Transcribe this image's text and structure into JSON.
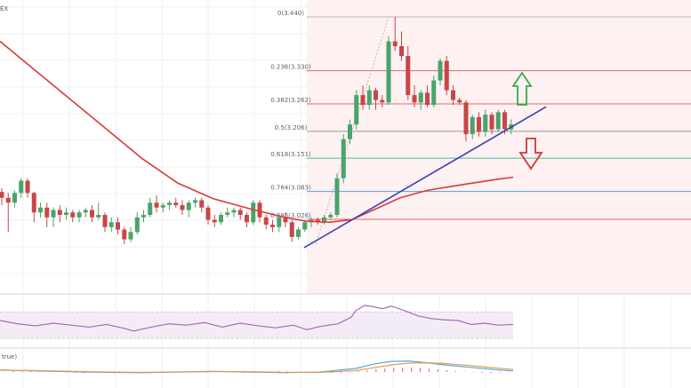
{
  "header": {
    "symbol_fragment": "EX"
  },
  "indicator_label": "true)",
  "colors": {
    "bull": "#4aa36b",
    "bear": "#c94646",
    "ma": "#d93b3b",
    "trendline": "#3a3fb8",
    "rsi": "#a66ab6",
    "fib_shade": "#fdf1f1",
    "arrow_up": "#3aa84a",
    "arrow_down": "#d63333"
  },
  "chart_data": {
    "type": "candlestick",
    "title": "",
    "ylim": [
      2.95,
      3.47
    ],
    "fib_levels": [
      {
        "ratio": "0",
        "price": 3.44,
        "label": "0(3.440)",
        "color": "#b9b9b9"
      },
      {
        "ratio": "0.236",
        "price": 3.33,
        "label": "0.236(3.330)",
        "color": "#e06a6a"
      },
      {
        "ratio": "0.382",
        "price": 3.262,
        "label": "0.382(3.262)",
        "color": "#e06a6a"
      },
      {
        "ratio": "0.5",
        "price": 3.206,
        "label": "0.5(3.206)",
        "color": "#9a9a9a"
      },
      {
        "ratio": "0.618",
        "price": 3.151,
        "label": "0.618(3.151)",
        "color": "#4cc09a"
      },
      {
        "ratio": "0.764",
        "price": 3.083,
        "label": "0.764(3.083)",
        "color": "#5aa0c8"
      },
      {
        "ratio": "0.886",
        "price": 3.026,
        "label": "0.886(3.026)",
        "color": "#e06a6a"
      }
    ],
    "candles": [
      [
        3.082,
        3.09,
        3.055,
        3.07
      ],
      [
        3.07,
        3.08,
        3.0,
        3.06
      ],
      [
        3.06,
        3.085,
        3.05,
        3.08
      ],
      [
        3.08,
        3.11,
        3.07,
        3.105
      ],
      [
        3.105,
        3.11,
        3.07,
        3.08
      ],
      [
        3.08,
        3.082,
        3.02,
        3.04
      ],
      [
        3.04,
        3.06,
        3.03,
        3.05
      ],
      [
        3.05,
        3.06,
        3.01,
        3.03
      ],
      [
        3.03,
        3.05,
        3.01,
        3.045
      ],
      [
        3.045,
        3.055,
        3.02,
        3.035
      ],
      [
        3.035,
        3.05,
        3.025,
        3.04
      ],
      [
        3.04,
        3.045,
        3.02,
        3.03
      ],
      [
        3.03,
        3.045,
        3.02,
        3.04
      ],
      [
        3.04,
        3.05,
        3.03,
        3.045
      ],
      [
        3.045,
        3.055,
        3.02,
        3.03
      ],
      [
        3.03,
        3.06,
        3.025,
        3.035
      ],
      [
        3.035,
        3.04,
        3.0,
        3.01
      ],
      [
        3.01,
        3.03,
        3.0,
        3.02
      ],
      [
        3.02,
        3.03,
        2.995,
        3.005
      ],
      [
        3.005,
        3.01,
        2.975,
        2.985
      ],
      [
        2.985,
        3.01,
        2.98,
        3.0
      ],
      [
        3.0,
        3.04,
        2.995,
        3.03
      ],
      [
        3.03,
        3.045,
        3.02,
        3.035
      ],
      [
        3.035,
        3.07,
        3.03,
        3.06
      ],
      [
        3.06,
        3.075,
        3.04,
        3.05
      ],
      [
        3.05,
        3.06,
        3.04,
        3.055
      ],
      [
        3.055,
        3.065,
        3.045,
        3.06
      ],
      [
        3.06,
        3.07,
        3.05,
        3.055
      ],
      [
        3.055,
        3.065,
        3.035,
        3.045
      ],
      [
        3.045,
        3.065,
        3.03,
        3.06
      ],
      [
        3.06,
        3.07,
        3.05,
        3.065
      ],
      [
        3.065,
        3.07,
        3.04,
        3.05
      ],
      [
        3.05,
        3.055,
        3.015,
        3.025
      ],
      [
        3.025,
        3.035,
        3.01,
        3.02
      ],
      [
        3.02,
        3.04,
        3.015,
        3.035
      ],
      [
        3.035,
        3.05,
        3.03,
        3.04
      ],
      [
        3.04,
        3.05,
        3.03,
        3.045
      ],
      [
        3.045,
        3.05,
        3.025,
        3.035
      ],
      [
        3.035,
        3.04,
        3.01,
        3.02
      ],
      [
        3.02,
        3.065,
        3.015,
        3.06
      ],
      [
        3.06,
        3.065,
        3.02,
        3.03
      ],
      [
        3.03,
        3.035,
        3.005,
        3.015
      ],
      [
        3.015,
        3.025,
        3.0,
        3.01
      ],
      [
        3.01,
        3.035,
        3.0,
        3.03
      ],
      [
        3.03,
        3.04,
        3.01,
        3.02
      ],
      [
        3.02,
        3.025,
        2.98,
        2.99
      ],
      [
        2.99,
        3.01,
        2.985,
        3.005
      ],
      [
        3.005,
        3.025,
        3.0,
        3.02
      ],
      [
        3.02,
        3.03,
        3.01,
        3.025
      ],
      [
        3.025,
        3.03,
        3.015,
        3.02
      ],
      [
        3.02,
        3.035,
        3.015,
        3.03
      ],
      [
        3.03,
        3.04,
        3.025,
        3.035
      ],
      [
        3.035,
        3.12,
        3.03,
        3.11
      ],
      [
        3.11,
        3.2,
        3.1,
        3.19
      ],
      [
        3.19,
        3.23,
        3.18,
        3.22
      ],
      [
        3.22,
        3.29,
        3.21,
        3.28
      ],
      [
        3.28,
        3.3,
        3.25,
        3.26
      ],
      [
        3.26,
        3.3,
        3.25,
        3.29
      ],
      [
        3.29,
        3.295,
        3.25,
        3.27
      ],
      [
        3.27,
        3.28,
        3.255,
        3.265
      ],
      [
        3.265,
        3.4,
        3.26,
        3.39
      ],
      [
        3.39,
        3.44,
        3.37,
        3.38
      ],
      [
        3.38,
        3.41,
        3.35,
        3.36
      ],
      [
        3.36,
        3.38,
        3.27,
        3.28
      ],
      [
        3.28,
        3.3,
        3.255,
        3.265
      ],
      [
        3.265,
        3.29,
        3.25,
        3.285
      ],
      [
        3.285,
        3.3,
        3.255,
        3.26
      ],
      [
        3.26,
        3.32,
        3.255,
        3.31
      ],
      [
        3.31,
        3.355,
        3.3,
        3.35
      ],
      [
        3.35,
        3.36,
        3.28,
        3.29
      ],
      [
        3.29,
        3.3,
        3.26,
        3.27
      ],
      [
        3.27,
        3.275,
        3.26,
        3.265
      ],
      [
        3.265,
        3.27,
        3.185,
        3.2
      ],
      [
        3.2,
        3.24,
        3.19,
        3.235
      ],
      [
        3.235,
        3.245,
        3.195,
        3.205
      ],
      [
        3.205,
        3.25,
        3.195,
        3.24
      ],
      [
        3.24,
        3.245,
        3.2,
        3.21
      ],
      [
        3.21,
        3.25,
        3.205,
        3.245
      ],
      [
        3.245,
        3.25,
        3.2,
        3.21
      ],
      [
        3.21,
        3.23,
        3.2,
        3.22
      ]
    ],
    "moving_average": [
      [
        0,
        3.39
      ],
      [
        40,
        3.33
      ],
      [
        80,
        3.27
      ],
      [
        120,
        3.21
      ],
      [
        160,
        3.15
      ],
      [
        200,
        3.1
      ],
      [
        240,
        3.068
      ],
      [
        280,
        3.048
      ],
      [
        320,
        3.03
      ],
      [
        345,
        3.022
      ],
      [
        370,
        3.02
      ],
      [
        395,
        3.025
      ],
      [
        420,
        3.045
      ],
      [
        450,
        3.07
      ],
      [
        480,
        3.085
      ],
      [
        520,
        3.097
      ],
      [
        560,
        3.108
      ],
      [
        577,
        3.112
      ]
    ],
    "trendline": [
      [
        342,
        2.968
      ],
      [
        614,
        3.256
      ]
    ],
    "rsi": [
      [
        0,
        57
      ],
      [
        20,
        52
      ],
      [
        40,
        49
      ],
      [
        60,
        53
      ],
      [
        80,
        50
      ],
      [
        100,
        47
      ],
      [
        120,
        51
      ],
      [
        140,
        45
      ],
      [
        150,
        41
      ],
      [
        170,
        47
      ],
      [
        190,
        52
      ],
      [
        210,
        50
      ],
      [
        230,
        54
      ],
      [
        250,
        47
      ],
      [
        270,
        53
      ],
      [
        290,
        49
      ],
      [
        310,
        46
      ],
      [
        330,
        50
      ],
      [
        345,
        43
      ],
      [
        360,
        48
      ],
      [
        380,
        52
      ],
      [
        395,
        62
      ],
      [
        400,
        72
      ],
      [
        410,
        80
      ],
      [
        420,
        78
      ],
      [
        430,
        75
      ],
      [
        440,
        79
      ],
      [
        455,
        72
      ],
      [
        470,
        64
      ],
      [
        485,
        60
      ],
      [
        500,
        58
      ],
      [
        515,
        57
      ],
      [
        530,
        51
      ],
      [
        545,
        53
      ],
      [
        560,
        50
      ],
      [
        577,
        51
      ]
    ],
    "macd_hist": [
      0.1,
      0.3,
      0.5,
      0.6,
      0.4,
      0.2,
      0.1,
      -0.1,
      -0.2,
      -0.3,
      -0.2,
      -0.1,
      0.1,
      0.2,
      0.1,
      0,
      -0.1,
      -0.2,
      -0.3,
      -0.2,
      0,
      0.2,
      0.3,
      0.2,
      0.1,
      0,
      -0.1,
      -0.2,
      -0.1,
      0.1,
      0.2,
      0.3,
      0.2,
      0.1,
      0,
      -0.1,
      -0.2,
      -0.3,
      -0.2,
      -0.1,
      0.2,
      0.5,
      0.8,
      1.0,
      1.1,
      1.2,
      1.3,
      1.2,
      1.0,
      0.8,
      0.5,
      0.3,
      0.1,
      -0.1,
      -0.2,
      -0.3,
      -0.2,
      -0.1
    ],
    "macd_line": [
      [
        0,
        0.6
      ],
      [
        40,
        0.3
      ],
      [
        80,
        0.1
      ],
      [
        120,
        -0.1
      ],
      [
        160,
        -0.2
      ],
      [
        200,
        0
      ],
      [
        240,
        0.2
      ],
      [
        280,
        0
      ],
      [
        320,
        -0.2
      ],
      [
        360,
        0
      ],
      [
        400,
        1.0
      ],
      [
        420,
        2.2
      ],
      [
        440,
        3.0
      ],
      [
        460,
        3.1
      ],
      [
        480,
        2.6
      ],
      [
        500,
        2.0
      ],
      [
        530,
        1.3
      ],
      [
        560,
        0.6
      ],
      [
        577,
        0.3
      ]
    ],
    "signal_line": [
      [
        0,
        0.5
      ],
      [
        40,
        0.4
      ],
      [
        80,
        0.2
      ],
      [
        120,
        0
      ],
      [
        160,
        -0.1
      ],
      [
        200,
        0
      ],
      [
        240,
        0.1
      ],
      [
        280,
        0.1
      ],
      [
        320,
        -0.1
      ],
      [
        360,
        -0.1
      ],
      [
        400,
        0.4
      ],
      [
        420,
        1.2
      ],
      [
        440,
        2.0
      ],
      [
        460,
        2.5
      ],
      [
        480,
        2.6
      ],
      [
        500,
        2.4
      ],
      [
        530,
        1.8
      ],
      [
        560,
        1.1
      ],
      [
        577,
        0.7
      ]
    ]
  }
}
